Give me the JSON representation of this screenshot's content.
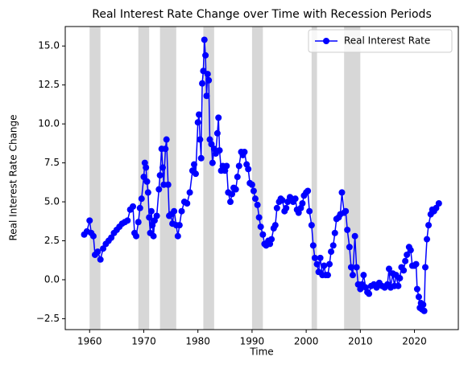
{
  "chart_data": {
    "type": "line",
    "title": "Real Interest Rate Change over Time with Recession Periods",
    "xlabel": "Time",
    "ylabel": "Real Interest Rate Change",
    "x": [
      1959,
      1959.5,
      1960,
      1960.3,
      1960.7,
      1961,
      1961.5,
      1962,
      1962.5,
      1963,
      1963.5,
      1964,
      1964.5,
      1965,
      1965.5,
      1966,
      1966.5,
      1967,
      1967.5,
      1968,
      1968.3,
      1968.6,
      1969,
      1969.3,
      1969.6,
      1970,
      1970.2,
      1970.4,
      1970.6,
      1970.8,
      1971,
      1971.2,
      1971.4,
      1971.6,
      1971.8,
      1972,
      1972.4,
      1972.8,
      1973,
      1973.3,
      1973.5,
      1973.7,
      1974,
      1974.2,
      1974.5,
      1974.7,
      1975,
      1975.3,
      1975.6,
      1976,
      1976.3,
      1976.6,
      1977,
      1977.5,
      1978,
      1978.5,
      1979,
      1979.3,
      1979.6,
      1980,
      1980.2,
      1980.4,
      1980.6,
      1980.8,
      1981,
      1981.2,
      1981.4,
      1981.6,
      1981.8,
      1982,
      1982.2,
      1982.5,
      1982.7,
      1983,
      1983.3,
      1983.6,
      1983.8,
      1984,
      1984.3,
      1984.6,
      1985,
      1985.3,
      1985.6,
      1986,
      1986.3,
      1986.6,
      1987,
      1987.3,
      1987.6,
      1988,
      1988.3,
      1988.6,
      1989,
      1989.3,
      1989.6,
      1990,
      1990.3,
      1990.6,
      1991,
      1991.3,
      1991.6,
      1992,
      1992.3,
      1992.6,
      1993,
      1993.3,
      1993.6,
      1994,
      1994.3,
      1994.6,
      1995,
      1995.3,
      1995.6,
      1996,
      1996.3,
      1996.6,
      1997,
      1997.3,
      1997.6,
      1998,
      1998.3,
      1998.6,
      1999,
      1999.3,
      1999.6,
      2000,
      2000.3,
      2000.6,
      2001,
      2001.3,
      2001.6,
      2002,
      2002.3,
      2002.6,
      2003,
      2003.3,
      2003.6,
      2004,
      2004.3,
      2004.6,
      2005,
      2005.3,
      2005.6,
      2006,
      2006.3,
      2006.6,
      2007,
      2007.3,
      2007.6,
      2008,
      2008.3,
      2008.6,
      2009,
      2009.3,
      2009.6,
      2010,
      2010.3,
      2010.6,
      2011,
      2011.3,
      2011.6,
      2012,
      2012.5,
      2013,
      2013.5,
      2014,
      2014.5,
      2015,
      2015.3,
      2015.6,
      2016,
      2016.3,
      2016.6,
      2017,
      2017.3,
      2017.6,
      2018,
      2018.3,
      2018.6,
      2019,
      2019.3,
      2019.6,
      2020,
      2020.3,
      2020.5,
      2020.8,
      2021,
      2021.2,
      2021.4,
      2021.6,
      2021.8,
      2022,
      2022.3,
      2022.6,
      2023,
      2023.3,
      2023.6,
      2024,
      2024.5
    ],
    "series": [
      {
        "name": "Real Interest Rate",
        "color": "#0000ff",
        "values": [
          2.9,
          3.1,
          3.8,
          3.0,
          2.8,
          1.6,
          1.8,
          1.3,
          2.0,
          2.3,
          2.5,
          2.7,
          3.0,
          3.2,
          3.4,
          3.6,
          3.7,
          3.8,
          4.5,
          4.7,
          3.0,
          2.8,
          3.7,
          4.6,
          5.2,
          6.6,
          7.5,
          7.2,
          6.3,
          5.6,
          4.0,
          3.0,
          4.4,
          3.5,
          2.8,
          3.8,
          4.1,
          5.8,
          6.7,
          8.4,
          7.2,
          6.1,
          8.4,
          9.0,
          6.1,
          4.1,
          4.2,
          3.6,
          4.4,
          3.5,
          2.8,
          3.5,
          4.4,
          5.0,
          4.9,
          5.6,
          7.0,
          7.4,
          6.8,
          10.1,
          10.6,
          9.0,
          7.8,
          12.6,
          13.4,
          15.4,
          14.4,
          11.8,
          13.2,
          12.8,
          9.0,
          8.7,
          7.5,
          8.4,
          8.1,
          9.4,
          10.4,
          8.3,
          7.0,
          7.3,
          7.0,
          7.3,
          5.6,
          5.0,
          5.5,
          5.9,
          5.8,
          6.6,
          7.3,
          8.2,
          8.0,
          8.2,
          7.4,
          7.1,
          6.2,
          6.1,
          5.7,
          5.2,
          4.8,
          4.0,
          3.4,
          2.9,
          2.3,
          2.2,
          2.5,
          2.3,
          2.6,
          3.3,
          3.5,
          4.6,
          5.0,
          5.2,
          5.1,
          4.4,
          4.6,
          5.0,
          5.3,
          5.2,
          5.0,
          5.2,
          4.5,
          4.3,
          4.6,
          4.9,
          5.4,
          5.6,
          5.7,
          4.4,
          3.5,
          2.2,
          1.4,
          1.0,
          0.5,
          1.4,
          0.3,
          0.9,
          0.3,
          0.3,
          1.0,
          1.8,
          2.2,
          3.0,
          3.9,
          4.0,
          4.2,
          5.6,
          4.3,
          4.4,
          3.2,
          2.1,
          0.8,
          0.3,
          2.8,
          0.8,
          -0.3,
          -0.6,
          -0.3,
          0.3,
          -0.5,
          -0.8,
          -0.9,
          -0.4,
          -0.3,
          -0.5,
          -0.2,
          -0.4,
          -0.5,
          -0.3,
          0.7,
          -0.5,
          0.4,
          -0.4,
          0.3,
          -0.4,
          0.1,
          0.8,
          0.6,
          1.2,
          1.6,
          2.1,
          1.9,
          0.9,
          0.9,
          1.0,
          -0.6,
          -1.1,
          -1.8,
          -1.5,
          -1.9,
          -1.6,
          -2.0,
          0.8,
          2.6,
          3.5,
          4.2,
          4.5,
          4.4,
          4.6,
          4.9
        ]
      }
    ],
    "recession_periods": [
      [
        1960,
        1962
      ],
      [
        1969,
        1971
      ],
      [
        1973,
        1976
      ],
      [
        1981,
        1983
      ],
      [
        1990,
        1992
      ],
      [
        2001,
        2002
      ],
      [
        2007,
        2010
      ]
    ],
    "recession_color": "#d3d3d3",
    "xlim": [
      1955.5,
      2028.1
    ],
    "xticks": [
      1960,
      1970,
      1980,
      1990,
      2000,
      2010,
      2020
    ],
    "ylim": [
      -3.2,
      16.25
    ],
    "yticks": [
      {
        "value": -2.5,
        "label": "−2.5"
      },
      {
        "value": 0,
        "label": "0.0"
      },
      2.5,
      {
        "value": 5,
        "label": "5.0"
      },
      7.5,
      {
        "value": 10,
        "label": "10.0"
      },
      12.5,
      {
        "value": 15,
        "label": "15.0"
      }
    ],
    "legend": "upper right",
    "grid": false
  }
}
